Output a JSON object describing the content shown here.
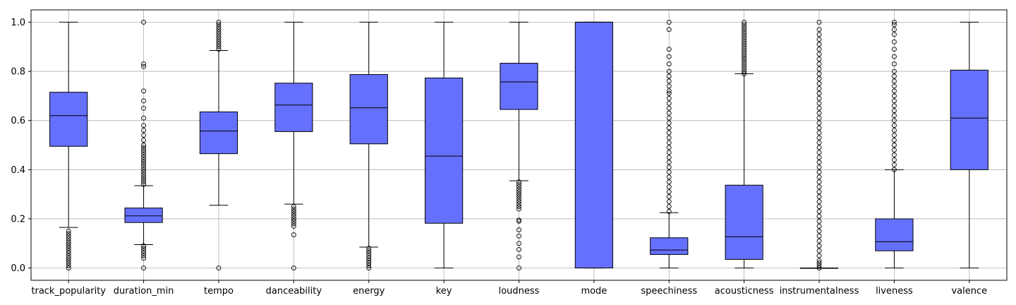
{
  "chart_data": {
    "type": "box",
    "title": "",
    "xlabel": "",
    "ylabel": "",
    "ylim": [
      -0.05,
      1.05
    ],
    "y_ticks": [
      "0.0",
      "0.2",
      "0.4",
      "0.6",
      "0.8",
      "1.0"
    ],
    "y_tick_values": [
      0,
      0.2,
      0.4,
      0.6,
      0.8,
      1.0
    ],
    "grid": true,
    "box_color": "#6670ff",
    "categories": [
      "track_popularity",
      "duration_min",
      "tempo",
      "danceability",
      "energy",
      "key",
      "loudness",
      "mode",
      "speechiness",
      "acousticness",
      "instrumentalness",
      "liveness",
      "valence"
    ],
    "boxes": [
      {
        "whislo": 0.165,
        "q1": 0.495,
        "med": 0.62,
        "q3": 0.715,
        "whishi": 1.0,
        "fliers": [
          0.0,
          0.01,
          0.02,
          0.03,
          0.04,
          0.05,
          0.06,
          0.07,
          0.08,
          0.09,
          0.1,
          0.11,
          0.12,
          0.13,
          0.14,
          0.15
        ]
      },
      {
        "whislo": 0.095,
        "q1": 0.185,
        "med": 0.212,
        "q3": 0.244,
        "whishi": 0.335,
        "fliers": [
          0.0,
          0.04,
          0.05,
          0.06,
          0.07,
          0.08,
          0.09,
          0.34,
          0.35,
          0.36,
          0.37,
          0.38,
          0.39,
          0.4,
          0.41,
          0.42,
          0.43,
          0.44,
          0.45,
          0.46,
          0.47,
          0.48,
          0.49,
          0.5,
          0.52,
          0.54,
          0.56,
          0.58,
          0.61,
          0.65,
          0.68,
          0.72,
          0.82,
          0.83,
          1.0
        ]
      },
      {
        "whislo": 0.255,
        "q1": 0.465,
        "med": 0.557,
        "q3": 0.635,
        "whishi": 0.885,
        "fliers": [
          0.0,
          0.89,
          0.9,
          0.91,
          0.92,
          0.93,
          0.94,
          0.95,
          0.96,
          0.97,
          0.98,
          0.99,
          1.0
        ]
      },
      {
        "whislo": 0.26,
        "q1": 0.555,
        "med": 0.663,
        "q3": 0.752,
        "whishi": 1.0,
        "fliers": [
          0.0,
          0.135,
          0.17,
          0.18,
          0.19,
          0.2,
          0.21,
          0.22,
          0.23,
          0.24,
          0.25
        ]
      },
      {
        "whislo": 0.085,
        "q1": 0.505,
        "med": 0.652,
        "q3": 0.787,
        "whishi": 1.0,
        "fliers": [
          0.0,
          0.01,
          0.02,
          0.03,
          0.04,
          0.05,
          0.06,
          0.07,
          0.08
        ]
      },
      {
        "whislo": 0.0,
        "q1": 0.182,
        "med": 0.455,
        "q3": 0.773,
        "whishi": 1.0,
        "fliers": []
      },
      {
        "whislo": 0.355,
        "q1": 0.645,
        "med": 0.757,
        "q3": 0.833,
        "whishi": 1.0,
        "fliers": [
          0.0,
          0.045,
          0.075,
          0.1,
          0.13,
          0.155,
          0.19,
          0.195,
          0.24,
          0.25,
          0.26,
          0.27,
          0.28,
          0.29,
          0.3,
          0.31,
          0.32,
          0.33,
          0.34,
          0.35
        ]
      },
      {
        "whislo": 0.0,
        "q1": 0.0,
        "med": 1.0,
        "q3": 1.0,
        "whishi": 1.0,
        "fliers": []
      },
      {
        "whislo": 0.0,
        "q1": 0.055,
        "med": 0.073,
        "q3": 0.123,
        "whishi": 0.225,
        "fliers": [
          0.23,
          0.25,
          0.27,
          0.29,
          0.31,
          0.33,
          0.35,
          0.37,
          0.39,
          0.41,
          0.43,
          0.45,
          0.47,
          0.49,
          0.51,
          0.53,
          0.55,
          0.57,
          0.59,
          0.61,
          0.63,
          0.65,
          0.67,
          0.69,
          0.71,
          0.72,
          0.74,
          0.76,
          0.78,
          0.8,
          0.83,
          0.86,
          0.89,
          0.97,
          1.0
        ]
      },
      {
        "whislo": 0.0,
        "q1": 0.035,
        "med": 0.127,
        "q3": 0.337,
        "whishi": 0.79,
        "fliers": [
          0.79,
          0.8,
          0.81,
          0.82,
          0.83,
          0.84,
          0.85,
          0.86,
          0.87,
          0.88,
          0.89,
          0.9,
          0.91,
          0.92,
          0.93,
          0.94,
          0.95,
          0.96,
          0.97,
          0.98,
          0.99,
          1.0
        ]
      },
      {
        "whislo": 0.0,
        "q1": 0.0,
        "med": 0.0,
        "q3": 0.0,
        "whishi": 0.0,
        "fliers": [
          0.0,
          0.01,
          0.02,
          0.03,
          0.05,
          0.07,
          0.09,
          0.11,
          0.13,
          0.15,
          0.17,
          0.19,
          0.21,
          0.23,
          0.25,
          0.27,
          0.29,
          0.31,
          0.33,
          0.35,
          0.37,
          0.39,
          0.41,
          0.43,
          0.45,
          0.47,
          0.49,
          0.51,
          0.53,
          0.55,
          0.57,
          0.59,
          0.61,
          0.63,
          0.65,
          0.67,
          0.69,
          0.71,
          0.73,
          0.75,
          0.77,
          0.79,
          0.81,
          0.83,
          0.85,
          0.87,
          0.89,
          0.91,
          0.93,
          0.95,
          0.97,
          1.0
        ]
      },
      {
        "whislo": 0.0,
        "q1": 0.07,
        "med": 0.107,
        "q3": 0.2,
        "whishi": 0.4,
        "fliers": [
          0.4,
          0.42,
          0.44,
          0.46,
          0.48,
          0.5,
          0.52,
          0.54,
          0.56,
          0.58,
          0.6,
          0.62,
          0.64,
          0.66,
          0.68,
          0.7,
          0.72,
          0.74,
          0.76,
          0.78,
          0.8,
          0.83,
          0.86,
          0.89,
          0.92,
          0.95,
          0.97,
          0.99,
          1.0
        ]
      },
      {
        "whislo": 0.0,
        "q1": 0.4,
        "med": 0.61,
        "q3": 0.805,
        "whishi": 1.0,
        "fliers": []
      }
    ]
  }
}
